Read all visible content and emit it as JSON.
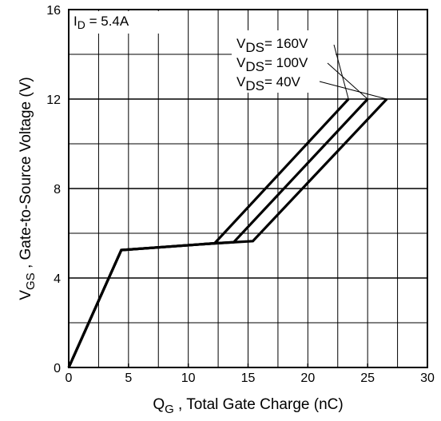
{
  "chart_data": {
    "type": "line",
    "xlabel": {
      "main": "Q",
      "sub": "G",
      "rest": " , Total Gate Charge (nC)"
    },
    "ylabel": {
      "main": "V",
      "sub": "GS",
      "rest": " , Gate-to-Source Voltage (V)"
    },
    "xlim": [
      0,
      30
    ],
    "ylim": [
      0,
      16
    ],
    "xticks": [
      0,
      5,
      10,
      15,
      20,
      25,
      30
    ],
    "yticks": [
      0,
      4,
      8,
      12,
      16
    ],
    "grid": true,
    "annotation": {
      "main": "I",
      "sub": "D",
      "rest": " = 5.4A"
    },
    "series": [
      {
        "name": "160V",
        "x": [
          0,
          4.4,
          12.2,
          23.4
        ],
        "y": [
          0,
          5.25,
          5.55,
          12
        ]
      },
      {
        "name": "100V",
        "x": [
          0,
          4.4,
          12.2,
          13.8,
          25.0
        ],
        "y": [
          0,
          5.25,
          5.55,
          5.6,
          12
        ]
      },
      {
        "name": "40V",
        "x": [
          0,
          4.4,
          12.2,
          15.4,
          26.6
        ],
        "y": [
          0,
          5.25,
          5.55,
          5.65,
          12
        ]
      }
    ],
    "legend_labels": [
      {
        "prefix": "V",
        "sub": "DS",
        "value": "= 160V"
      },
      {
        "prefix": "V",
        "sub": "DS",
        "value": "= 100V"
      },
      {
        "prefix": "V",
        "sub": "DS",
        "value": "= 40V"
      }
    ]
  }
}
